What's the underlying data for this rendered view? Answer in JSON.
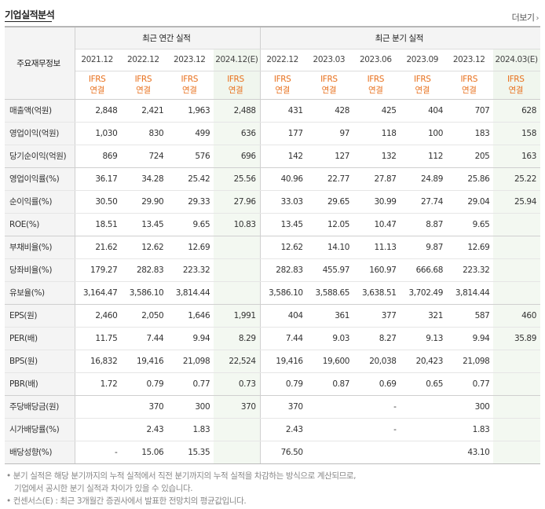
{
  "section": {
    "title": "기업실적분석",
    "more_label": "더보기",
    "more_icon": "chevron-right-icon"
  },
  "header": {
    "corner": "주요재무정보",
    "annual_group": "최근 연간 실적",
    "quarter_group": "최근 분기 실적",
    "annual_periods": [
      "2021.12",
      "2022.12",
      "2023.12",
      "2024.12(E)"
    ],
    "quarter_periods": [
      "2022.12",
      "2023.03",
      "2023.06",
      "2023.09",
      "2023.12",
      "2024.03(E)"
    ],
    "basis_line1": "IFRS",
    "basis_line2": "연결",
    "basis_color": "#e8711e",
    "estimate_bg": "#f3f8f1"
  },
  "rows": [
    {
      "label": "매출액(억원)",
      "annual": [
        "2,848",
        "2,421",
        "1,963",
        "2,488"
      ],
      "quarter": [
        "431",
        "428",
        "425",
        "404",
        "707",
        "628"
      ]
    },
    {
      "label": "영업이익(억원)",
      "annual": [
        "1,030",
        "830",
        "499",
        "636"
      ],
      "quarter": [
        "177",
        "97",
        "118",
        "100",
        "183",
        "158"
      ]
    },
    {
      "label": "당기순이익(억원)",
      "annual": [
        "869",
        "724",
        "576",
        "696"
      ],
      "quarter": [
        "142",
        "127",
        "132",
        "112",
        "205",
        "163"
      ]
    },
    {
      "label": "영업이익률(%)",
      "annual": [
        "36.17",
        "34.28",
        "25.42",
        "25.56"
      ],
      "quarter": [
        "40.96",
        "22.77",
        "27.87",
        "24.89",
        "25.86",
        "25.22"
      ]
    },
    {
      "label": "순이익률(%)",
      "annual": [
        "30.50",
        "29.90",
        "29.33",
        "27.96"
      ],
      "quarter": [
        "33.03",
        "29.65",
        "30.99",
        "27.74",
        "29.04",
        "25.94"
      ]
    },
    {
      "label": "ROE(%)",
      "annual": [
        "18.51",
        "13.45",
        "9.65",
        "10.83"
      ],
      "quarter": [
        "13.45",
        "12.05",
        "10.47",
        "8.87",
        "9.65",
        ""
      ]
    },
    {
      "label": "부채비율(%)",
      "annual": [
        "21.62",
        "12.62",
        "12.69",
        ""
      ],
      "quarter": [
        "12.62",
        "14.10",
        "11.13",
        "9.87",
        "12.69",
        ""
      ]
    },
    {
      "label": "당좌비율(%)",
      "annual": [
        "179.27",
        "282.83",
        "223.32",
        ""
      ],
      "quarter": [
        "282.83",
        "455.97",
        "160.97",
        "666.68",
        "223.32",
        ""
      ]
    },
    {
      "label": "유보율(%)",
      "annual": [
        "3,164.47",
        "3,586.10",
        "3,814.44",
        ""
      ],
      "quarter": [
        "3,586.10",
        "3,588.65",
        "3,638.51",
        "3,702.49",
        "3,814.44",
        ""
      ]
    },
    {
      "label": "EPS(원)",
      "annual": [
        "2,460",
        "2,050",
        "1,646",
        "1,991"
      ],
      "quarter": [
        "404",
        "361",
        "377",
        "321",
        "587",
        "460"
      ]
    },
    {
      "label": "PER(배)",
      "annual": [
        "11.75",
        "7.44",
        "9.94",
        "8.29"
      ],
      "quarter": [
        "7.44",
        "9.03",
        "8.27",
        "9.13",
        "9.94",
        "35.89"
      ]
    },
    {
      "label": "BPS(원)",
      "annual": [
        "16,832",
        "19,416",
        "21,098",
        "22,524"
      ],
      "quarter": [
        "19,416",
        "19,600",
        "20,038",
        "20,423",
        "21,098",
        ""
      ]
    },
    {
      "label": "PBR(배)",
      "annual": [
        "1.72",
        "0.79",
        "0.77",
        "0.73"
      ],
      "quarter": [
        "0.79",
        "0.87",
        "0.69",
        "0.65",
        "0.77",
        ""
      ]
    },
    {
      "label": "주당배당금(원)",
      "annual": [
        "",
        "370",
        "300",
        "370"
      ],
      "quarter": [
        "370",
        "",
        "-",
        "",
        "300",
        ""
      ]
    },
    {
      "label": "시가배당률(%)",
      "annual": [
        "",
        "2.43",
        "1.83",
        ""
      ],
      "quarter": [
        "2.43",
        "",
        "-",
        "",
        "1.83",
        ""
      ]
    },
    {
      "label": "배당성향(%)",
      "annual": [
        "-",
        "15.06",
        "15.35",
        ""
      ],
      "quarter": [
        "76.50",
        "",
        "",
        "",
        "43.10",
        ""
      ]
    }
  ],
  "notes": {
    "line1": "분기 실적은 해당 분기까지의 누적 실적에서 직전 분기까지의 누적 실적을 차감하는 방식으로 계산되므로,",
    "line1b": "기업에서 공시한 분기 실적과 차이가 있을 수 있습니다.",
    "line2": "컨센서스(E) : 최근 3개월간 증권사에서 발표한 전망치의 평균값입니다."
  }
}
